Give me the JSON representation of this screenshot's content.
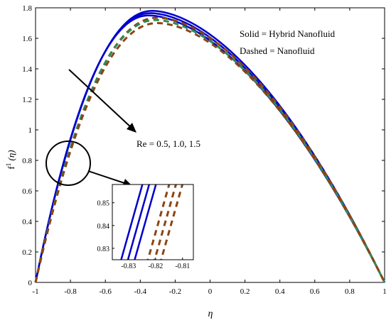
{
  "chart_data": {
    "type": "line",
    "xlabel": "η",
    "ylabel_main": "f",
    "ylabel_sup": "1",
    "ylabel_arg": "(η)",
    "xlim": [
      -1,
      1
    ],
    "ylim": [
      0,
      1.8
    ],
    "x_ticks": [
      "-1",
      "-0.8",
      "-0.6",
      "-0.4",
      "-0.2",
      "0",
      "0.2",
      "0.4",
      "0.6",
      "0.8",
      "1"
    ],
    "y_ticks": [
      "0",
      "0.2",
      "0.4",
      "0.6",
      "0.8",
      "1",
      "1.2",
      "1.4",
      "1.6",
      "1.8"
    ],
    "annotations": {
      "legend_solid": "Solid  = Hybrid Nanofluid",
      "legend_dashed": "Dashed = Nanofluid",
      "re_label": "Re = 0.5, 1.0, 1.5"
    },
    "series": [
      {
        "style": "solid",
        "color": "#0000cc",
        "peak_x": -0.33,
        "peak_y": 1.78
      },
      {
        "style": "solid",
        "color": "#0000cc",
        "peak_x": -0.34,
        "peak_y": 1.765
      },
      {
        "style": "solid",
        "color": "#0000cc",
        "peak_x": -0.35,
        "peak_y": 1.75
      },
      {
        "style": "dashed",
        "color": "#8b4513",
        "peak_x": -0.3,
        "peak_y": 1.735
      },
      {
        "style": "dashed",
        "color": "#2e8b57",
        "peak_x": -0.31,
        "peak_y": 1.72
      },
      {
        "style": "dashed",
        "color": "#8b4513",
        "peak_x": -0.3,
        "peak_y": 1.7
      }
    ],
    "inset": {
      "xlim": [
        -0.836,
        -0.806
      ],
      "ylim": [
        0.825,
        0.858
      ],
      "x_ticks": [
        "-0.83",
        "-0.82",
        "-0.81"
      ],
      "y_ticks": [
        "0.83",
        "0.84",
        "0.85"
      ],
      "solid_x_at_ylow": [
        -0.8332,
        -0.8307,
        -0.8282
      ],
      "dashed_x_at_ylow": [
        -0.8233,
        -0.8208,
        -0.8184
      ],
      "slope_dy_dx": 4.2
    }
  }
}
